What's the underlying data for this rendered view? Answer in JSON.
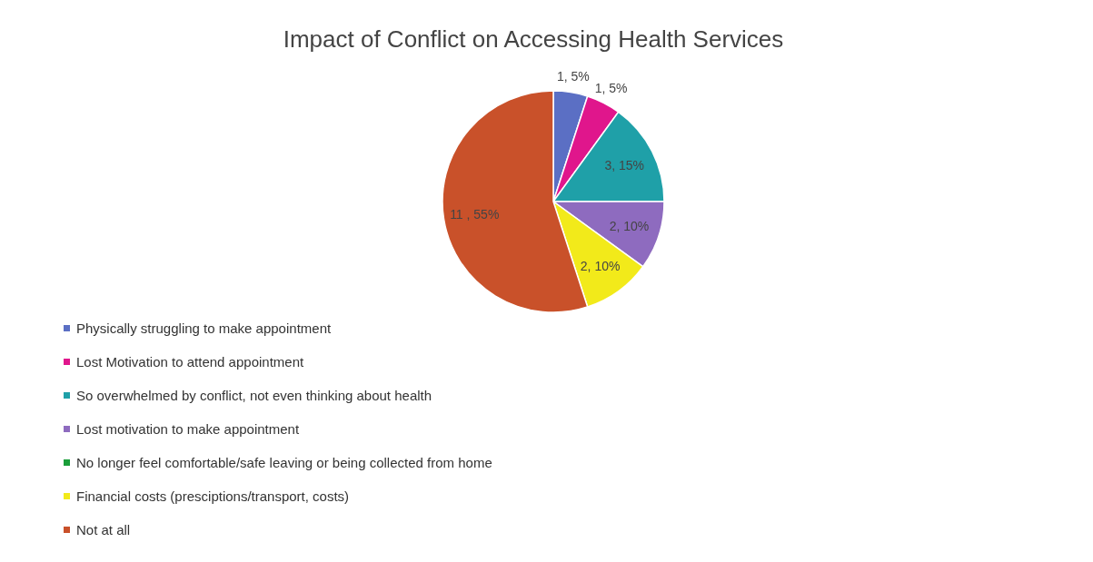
{
  "chart_data": {
    "type": "pie",
    "title": "Impact of Conflict on Accessing Health Services",
    "categories": [
      "Physically struggling to make appointment",
      "Lost Motivation to attend appointment",
      "So overwhelmed by conflict, not even thinking about health",
      "Lost motivation to make appointment",
      "No longer feel comfortable/safe leaving or being collected from home",
      "Financial costs (presciptions/transport, costs)",
      "Not at all"
    ],
    "values": [
      1,
      1,
      3,
      2,
      0,
      2,
      11
    ],
    "value_labels": [
      "1, 5%",
      "1, 5%",
      "3, 15%",
      "2, 10%",
      null,
      "2, 10%",
      "11 , 55%"
    ],
    "colors": [
      "#5b6fc4",
      "#e0168c",
      "#1fa0a8",
      "#8e6bbf",
      "#1a9e3a",
      "#f2ea1a",
      "#c9512a"
    ],
    "legend": "bottom"
  }
}
